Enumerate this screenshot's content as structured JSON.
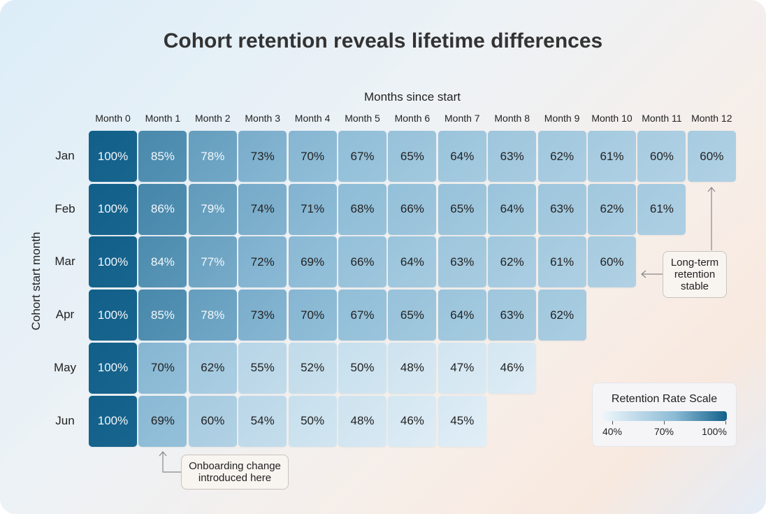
{
  "chart_data": {
    "type": "heatmap",
    "title": "Cohort retention reveals lifetime differences",
    "xlabel": "Months since start",
    "ylabel": "Cohort start month",
    "columns": [
      "Month 0",
      "Month 1",
      "Month 2",
      "Month 3",
      "Month 4",
      "Month 5",
      "Month 6",
      "Month 7",
      "Month 8",
      "Month 9",
      "Month 10",
      "Month 11",
      "Month 12"
    ],
    "rows": [
      "Jan",
      "Feb",
      "Mar",
      "Apr",
      "May",
      "Jun"
    ],
    "values": [
      [
        100,
        85,
        78,
        73,
        70,
        67,
        65,
        64,
        63,
        62,
        61,
        60,
        60
      ],
      [
        100,
        86,
        79,
        74,
        71,
        68,
        66,
        65,
        64,
        63,
        62,
        61
      ],
      [
        100,
        84,
        77,
        72,
        69,
        66,
        64,
        63,
        62,
        61,
        60
      ],
      [
        100,
        85,
        78,
        73,
        70,
        67,
        65,
        64,
        63,
        62
      ],
      [
        100,
        70,
        62,
        55,
        52,
        50,
        48,
        47,
        46
      ],
      [
        100,
        69,
        60,
        54,
        50,
        48,
        46,
        45
      ]
    ],
    "unit": "%",
    "color_scale": {
      "title": "Retention Rate Scale",
      "min": 40,
      "max": 100,
      "ticks": [
        "40%",
        "70%",
        "100%"
      ],
      "colors": [
        "#eef6fb",
        "#8cbbd6",
        "#12608a"
      ]
    },
    "annotations": [
      {
        "text": "Long-term retention stable",
        "target": "Mar Month 10 / Jan Month 12"
      },
      {
        "text": "Onboarding change introduced here",
        "target": "Jun Month 1"
      }
    ]
  }
}
